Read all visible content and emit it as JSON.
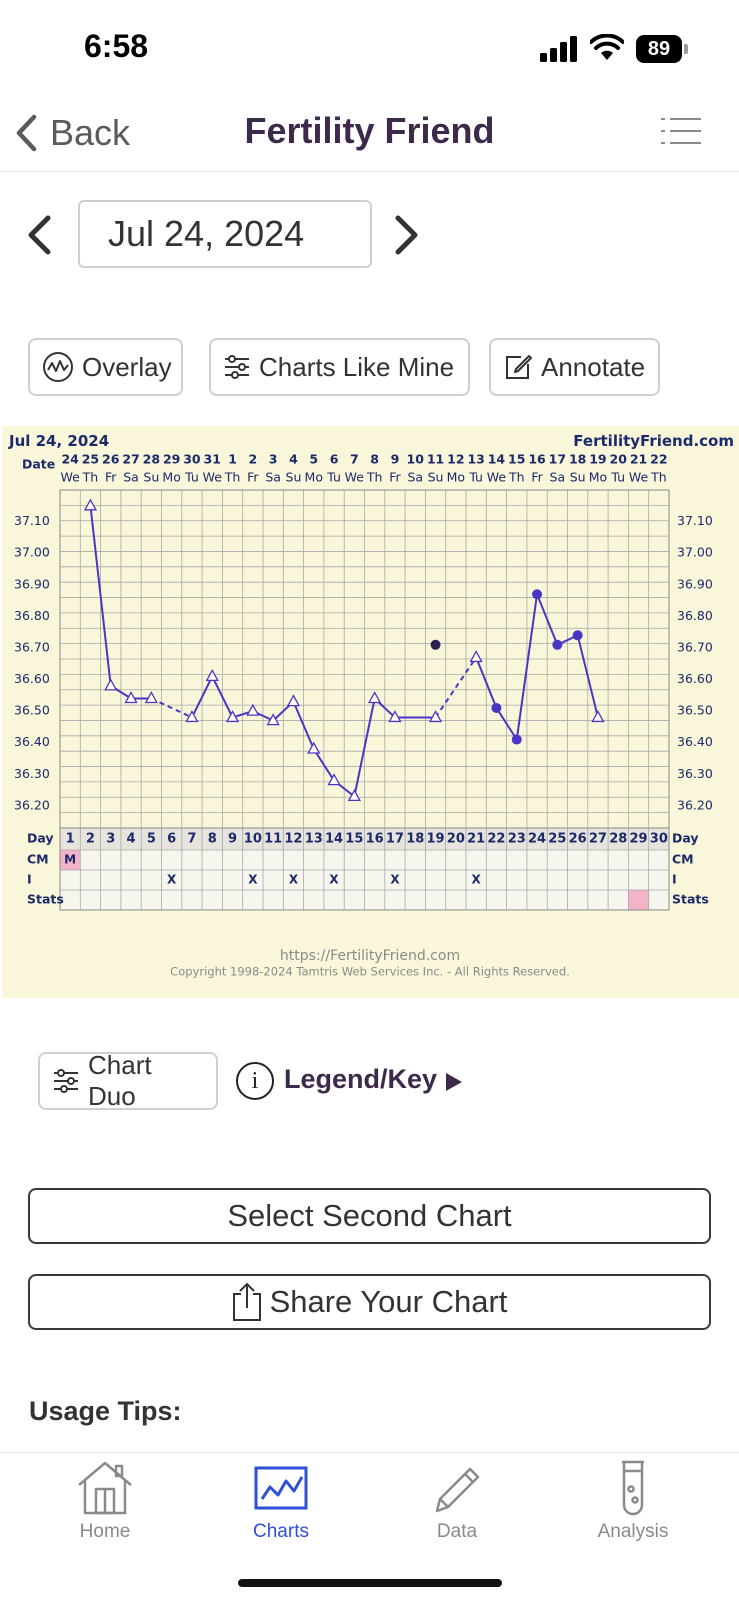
{
  "status_bar": {
    "time": "6:58",
    "battery": "89"
  },
  "nav": {
    "back_label": "Back",
    "title": "Fertility Friend"
  },
  "date_nav": {
    "value": "Jul 24, 2024"
  },
  "buttons": {
    "overlay": "Overlay",
    "charts_like_mine": "Charts Like Mine",
    "annotate": "Annotate"
  },
  "chart_data": {
    "type": "line",
    "header_date": "Jul 24, 2024",
    "site": "FertilityFriend.com",
    "row_labels": {
      "date": "Date",
      "day": "Day",
      "cm": "CM",
      "i": "I",
      "stats": "Stats"
    },
    "dates": [
      "24",
      "25",
      "26",
      "27",
      "28",
      "29",
      "30",
      "31",
      "1",
      "2",
      "3",
      "4",
      "5",
      "6",
      "7",
      "8",
      "9",
      "10",
      "11",
      "12",
      "13",
      "14",
      "15",
      "16",
      "17",
      "18",
      "19",
      "20",
      "21",
      "22"
    ],
    "weekdays": [
      "We",
      "Th",
      "Fr",
      "Sa",
      "Su",
      "Mo",
      "Tu",
      "We",
      "Th",
      "Fr",
      "Sa",
      "Su",
      "Mo",
      "Tu",
      "We",
      "Th",
      "Fr",
      "Sa",
      "Su",
      "Mo",
      "Tu",
      "We",
      "Th",
      "Fr",
      "Sa",
      "Su",
      "Mo",
      "Tu",
      "We",
      "Th"
    ],
    "cycle_days": [
      1,
      2,
      3,
      4,
      5,
      6,
      7,
      8,
      9,
      10,
      11,
      12,
      13,
      14,
      15,
      16,
      17,
      18,
      19,
      20,
      21,
      22,
      23,
      24,
      25,
      26,
      27,
      28,
      29,
      30
    ],
    "y_ticks": [
      "37.10",
      "37.00",
      "36.90",
      "36.80",
      "36.70",
      "36.60",
      "36.50",
      "36.40",
      "36.30",
      "36.20"
    ],
    "ylim": [
      36.13,
      37.2
    ],
    "series": [
      {
        "temps": [
          null,
          37.15,
          36.58,
          36.54,
          36.54,
          null,
          36.48,
          36.61,
          36.48,
          36.5,
          36.47,
          36.53,
          36.38,
          36.28,
          36.23,
          36.54,
          36.48,
          null,
          36.48,
          null,
          36.67,
          36.51,
          36.41,
          36.87,
          36.71,
          36.74,
          36.48,
          null,
          null,
          null
        ]
      }
    ],
    "markers": [
      "",
      "tri",
      "tri",
      "tri",
      "tri",
      "",
      "tri",
      "tri",
      "tri",
      "tri",
      "tri",
      "tri",
      "tri",
      "tri",
      "tri",
      "tri",
      "tri",
      "",
      "tri",
      "",
      "tri",
      "dot",
      "dot",
      "dot",
      "dot",
      "dot",
      "tri",
      "",
      "",
      ""
    ],
    "dashed_gaps": [
      [
        5,
        7
      ],
      [
        19,
        21
      ]
    ],
    "outliers": [
      {
        "day": 19,
        "temp": 36.71
      }
    ],
    "cm_row": [
      {
        "day": 1,
        "text": "M"
      }
    ],
    "i_row_marks": [
      6,
      10,
      12,
      14,
      17,
      21
    ],
    "i_mark_text": "X",
    "stats_highlight_day": 29,
    "footer_url": "https://FertilityFriend.com",
    "footer_copyright": "Copyright 1998-2024 Tamtris Web Services Inc. - All Rights Reserved.",
    "colors": {
      "line": "#4a36c4",
      "background": "#faf6da",
      "grid": "#a8a8a8",
      "labels": "#1b2a6b",
      "menses": "#f2b4c8"
    }
  },
  "chart_duo": {
    "label": "Chart Duo"
  },
  "legend": {
    "label": "Legend/Key",
    "info_glyph": "i"
  },
  "select_second_chart": "Select Second Chart",
  "share_chart": "Share Your Chart",
  "usage_tips": "Usage Tips:",
  "tabs": [
    {
      "label": "Home",
      "icon": "home-icon",
      "active": false
    },
    {
      "label": "Charts",
      "icon": "chart-icon",
      "active": true
    },
    {
      "label": "Data",
      "icon": "pencil-icon",
      "active": false
    },
    {
      "label": "Analysis",
      "icon": "test-tube-icon",
      "active": false
    }
  ],
  "accent_color": "#2f4fd8"
}
